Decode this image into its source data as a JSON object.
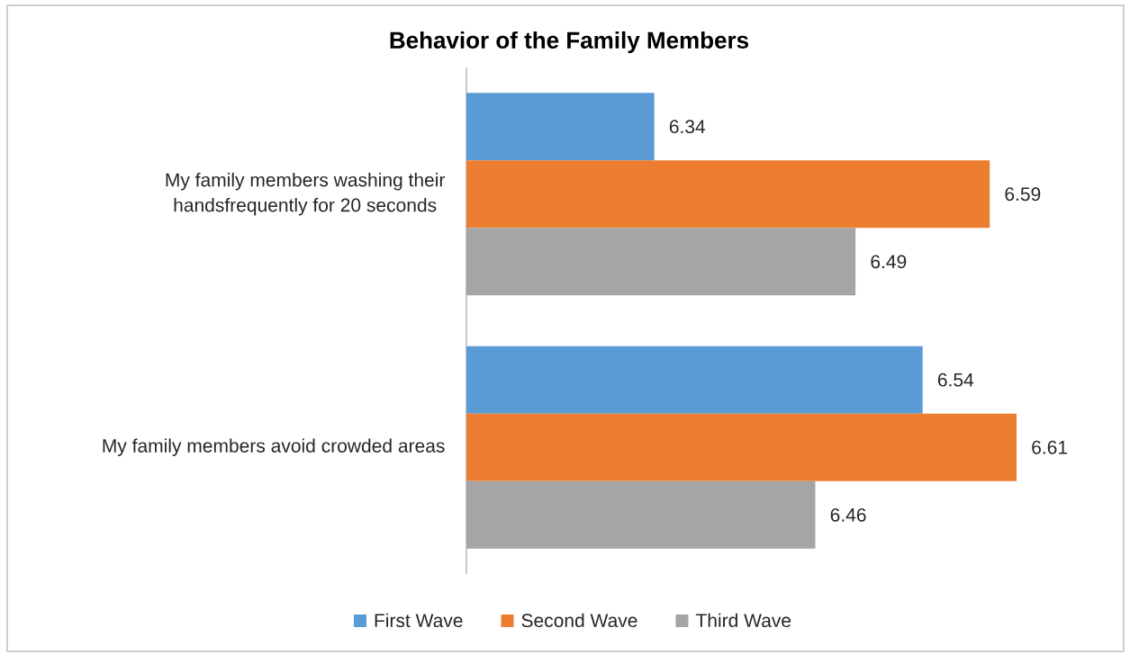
{
  "chart_data": {
    "type": "bar",
    "orientation": "horizontal",
    "title": "Behavior of the Family Members",
    "categories": [
      "My family members washing their handsfrequently for 20 seconds",
      "My family members avoid crowded areas"
    ],
    "series": [
      {
        "name": "First Wave",
        "color": "#5b9bd5",
        "values": [
          6.34,
          6.54
        ]
      },
      {
        "name": "Second Wave",
        "color": "#ed7d31",
        "values": [
          6.59,
          6.61
        ]
      },
      {
        "name": "Third Wave",
        "color": "#a5a5a5",
        "values": [
          6.49,
          6.46
        ]
      }
    ],
    "xlim": [
      6.2,
      6.61
    ],
    "data_labels": true,
    "legend": "bottom",
    "tick_labels": "y"
  }
}
